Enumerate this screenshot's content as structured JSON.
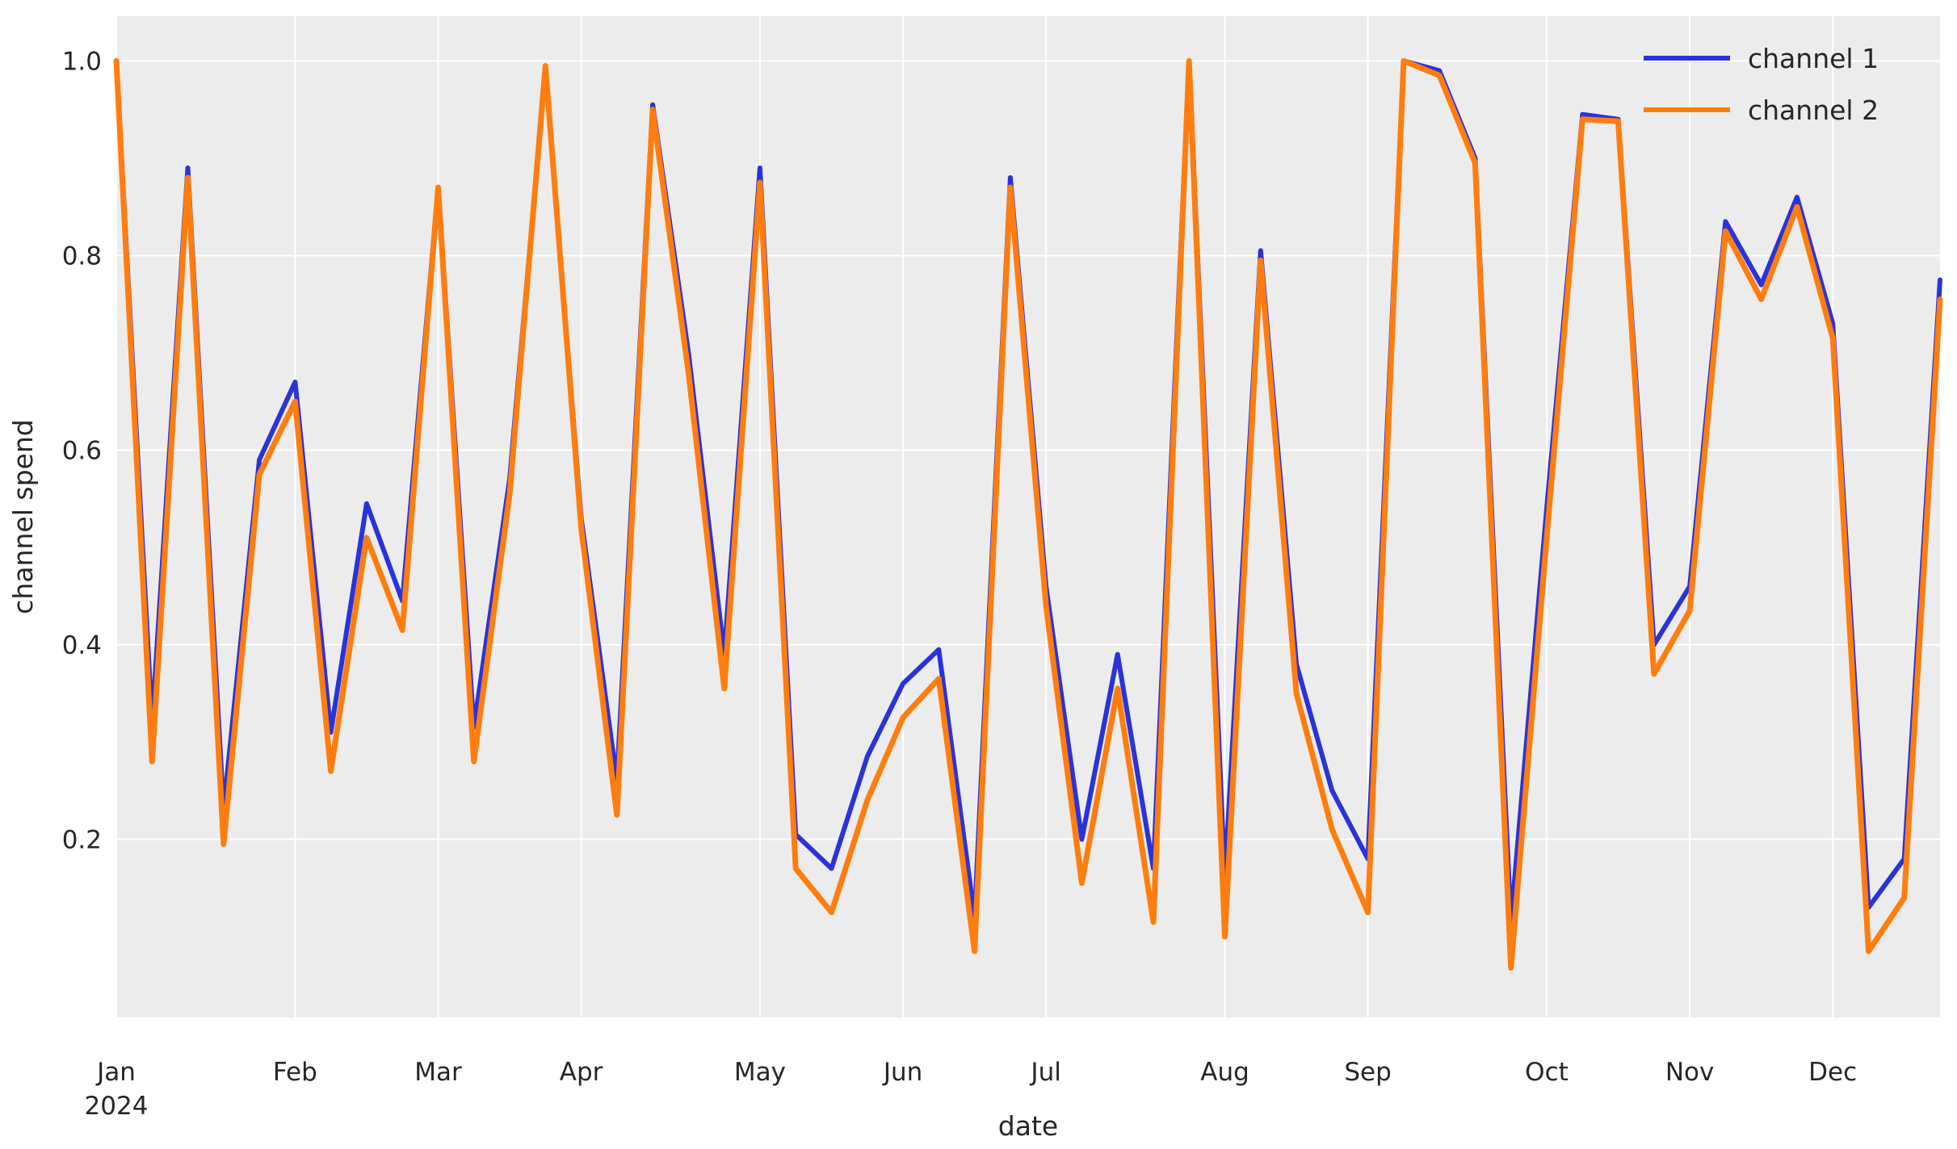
{
  "figure": {
    "background": "#ffffff",
    "axes_background": "#ececec",
    "grid_color": "#ffffff",
    "text_color": "#262626"
  },
  "legend": {
    "position": "upper right",
    "entries": [
      {
        "label": "channel 1",
        "color": "#2a33d9"
      },
      {
        "label": "channel 2",
        "color": "#ff7d0f"
      }
    ]
  },
  "chart_data": {
    "type": "line",
    "title": "",
    "xlabel": "date",
    "ylabel": "channel spend",
    "grid": true,
    "legend_position": "upper right",
    "ylim": [
      0.017,
      1.046
    ],
    "xlim_days": [
      0,
      357
    ],
    "y_ticks": [
      0.2,
      0.4,
      0.6,
      0.8,
      1.0
    ],
    "y_tick_labels": [
      "0.2",
      "0.4",
      "0.6",
      "0.8",
      "1.0"
    ],
    "x_ticks": [
      {
        "day": 0,
        "label": "Jan",
        "sublabel": "2024"
      },
      {
        "day": 35,
        "label": "Feb"
      },
      {
        "day": 63,
        "label": "Mar"
      },
      {
        "day": 91,
        "label": "Apr"
      },
      {
        "day": 126,
        "label": "May"
      },
      {
        "day": 154,
        "label": "Jun"
      },
      {
        "day": 182,
        "label": "Jul"
      },
      {
        "day": 217,
        "label": "Aug"
      },
      {
        "day": 245,
        "label": "Sep"
      },
      {
        "day": 280,
        "label": "Oct"
      },
      {
        "day": 308,
        "label": "Nov"
      },
      {
        "day": 336,
        "label": "Dec"
      }
    ],
    "x_days": [
      0,
      7,
      14,
      21,
      28,
      35,
      42,
      49,
      56,
      63,
      70,
      77,
      84,
      91,
      98,
      105,
      112,
      119,
      126,
      133,
      140,
      147,
      154,
      161,
      168,
      175,
      182,
      189,
      196,
      203,
      210,
      217,
      224,
      231,
      238,
      245,
      252,
      259,
      266,
      273,
      280,
      287,
      294,
      301,
      308,
      315,
      322,
      329,
      336,
      343,
      350,
      357
    ],
    "series": [
      {
        "name": "channel 1",
        "color": "#2a33d9",
        "line_width": 6,
        "values": [
          1.0,
          0.32,
          0.89,
          0.23,
          0.59,
          0.67,
          0.31,
          0.545,
          0.445,
          0.87,
          0.315,
          0.57,
          0.99,
          0.53,
          0.26,
          0.955,
          0.7,
          0.39,
          0.89,
          0.205,
          0.17,
          0.285,
          0.36,
          0.395,
          0.12,
          0.88,
          0.46,
          0.2,
          0.39,
          0.17,
          1.0,
          0.16,
          0.805,
          0.38,
          0.25,
          0.18,
          1.0,
          0.99,
          0.9,
          0.115,
          0.54,
          0.945,
          0.94,
          0.4,
          0.46,
          0.835,
          0.77,
          0.86,
          0.73,
          0.13,
          0.18,
          0.775
        ]
      },
      {
        "name": "channel 2",
        "color": "#ff7d0f",
        "line_width": 7,
        "values": [
          1.0,
          0.28,
          0.88,
          0.195,
          0.575,
          0.65,
          0.27,
          0.51,
          0.415,
          0.87,
          0.28,
          0.555,
          0.995,
          0.52,
          0.225,
          0.95,
          0.68,
          0.355,
          0.875,
          0.17,
          0.125,
          0.24,
          0.325,
          0.365,
          0.085,
          0.87,
          0.44,
          0.155,
          0.355,
          0.115,
          1.0,
          0.1,
          0.795,
          0.35,
          0.21,
          0.125,
          1.0,
          0.985,
          0.895,
          0.068,
          0.51,
          0.94,
          0.938,
          0.37,
          0.435,
          0.825,
          0.755,
          0.85,
          0.715,
          0.085,
          0.14,
          0.755
        ]
      }
    ]
  }
}
